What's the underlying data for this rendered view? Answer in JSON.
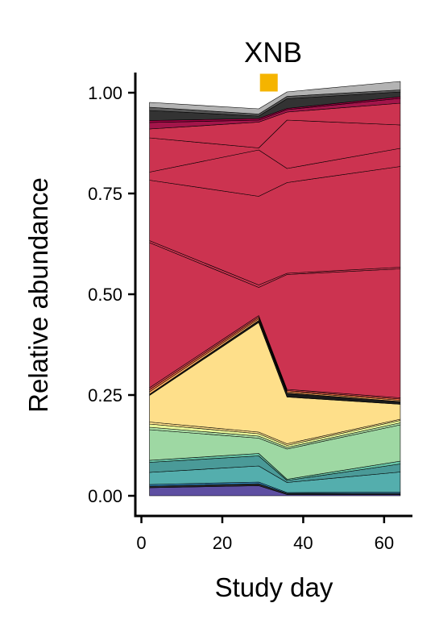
{
  "chart_data": {
    "type": "area",
    "title": "XNB",
    "xlabel": "Study day",
    "ylabel": "Relative abundance",
    "xlim": [
      -1.5,
      67
    ],
    "ylim": [
      -0.05,
      1.05
    ],
    "xticks": [
      0,
      20,
      40,
      60
    ],
    "xtick_labels": [
      "0",
      "20",
      "40",
      "60"
    ],
    "yticks": [
      0,
      0.25,
      0.5,
      0.75,
      1
    ],
    "ytick_labels": [
      "0.00",
      "0.25",
      "0.50",
      "0.75",
      "1.00"
    ],
    "legend": "none",
    "grid": false,
    "x": [
      2,
      29,
      36,
      64
    ],
    "series": [
      {
        "color": "#5e4fa2",
        "values": [
          0.02,
          0.025,
          0.003,
          0.003
        ]
      },
      {
        "color": "#2b2b2b",
        "values": [
          0.004,
          0.005,
          0.003,
          0.003
        ]
      },
      {
        "color": "#3288bd",
        "values": [
          0.004,
          0.004,
          0.002,
          0.003
        ]
      },
      {
        "color": "#54aead",
        "values": [
          0.03,
          0.04,
          0.025,
          0.05
        ]
      },
      {
        "color": "#4a9a98",
        "values": [
          0.025,
          0.025,
          0.005,
          0.02
        ]
      },
      {
        "color": "#66c2a5",
        "values": [
          0.005,
          0.006,
          0.003,
          0.007
        ]
      },
      {
        "color": "#9ed8a3",
        "values": [
          0.076,
          0.038,
          0.075,
          0.09
        ]
      },
      {
        "color": "#abdda4",
        "values": [
          0.006,
          0.005,
          0.004,
          0.005
        ]
      },
      {
        "color": "#e6f598",
        "values": [
          0.008,
          0.006,
          0.005,
          0.006
        ]
      },
      {
        "color": "#fee08b",
        "values": [
          0.005,
          0.004,
          0.004,
          0.003
        ]
      },
      {
        "color": "#fedf8a",
        "values": [
          0.066,
          0.272,
          0.116,
          0.037
        ]
      },
      {
        "color": "#1a1a1a",
        "values": [
          0.003,
          0.005,
          0.01,
          0.007
        ]
      },
      {
        "color": "#fdae61",
        "values": [
          0.006,
          0.004,
          0.003,
          0.003
        ]
      },
      {
        "color": "#f46d43",
        "values": [
          0.005,
          0.004,
          0.003,
          0.003
        ]
      },
      {
        "color": "#d53e4f",
        "values": [
          0.005,
          0.004,
          0.003,
          0.003
        ]
      },
      {
        "color": "#cc3350",
        "values": [
          0.36,
          0.07,
          0.285,
          0.32
        ]
      },
      {
        "color": "#cc3350",
        "values": [
          0.005,
          0.006,
          0.003,
          0.004
        ]
      },
      {
        "color": "#cc3350",
        "values": [
          0.15,
          0.22,
          0.225,
          0.25
        ]
      },
      {
        "color": "#cc3350",
        "values": [
          0.02,
          0.115,
          0.035,
          0.045
        ]
      },
      {
        "color": "#cc3350",
        "values": [
          0.085,
          0.005,
          0.12,
          0.058
        ]
      },
      {
        "color": "#cc3350",
        "values": [
          0.022,
          0.064,
          0.02,
          0.054
        ]
      },
      {
        "color": "#a3154a",
        "values": [
          0.016,
          0.005,
          0.006,
          0.012
        ]
      },
      {
        "color": "#9e0142",
        "values": [
          0.005,
          0.004,
          0.003,
          0.004
        ]
      },
      {
        "color": "#333333",
        "values": [
          0.025,
          0.006,
          0.024,
          0.012
        ]
      },
      {
        "color": "#595959",
        "values": [
          0.008,
          0.005,
          0.006,
          0.005
        ]
      },
      {
        "color": "#b3b3b3",
        "values": [
          0.012,
          0.013,
          0.011,
          0.021
        ]
      }
    ],
    "annotations": [
      {
        "type": "marker",
        "shape": "square",
        "color": "#f5b400",
        "x": 31.5,
        "y": 1.025
      }
    ]
  }
}
